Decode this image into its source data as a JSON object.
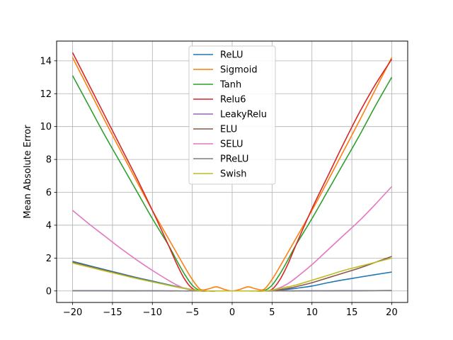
{
  "chart_data": {
    "type": "line",
    "title": "",
    "xlabel": "",
    "ylabel": "Mean Absolute Error",
    "xlim": [
      -22,
      22
    ],
    "ylim": [
      -0.7,
      15.2
    ],
    "xticks": [
      -20,
      -15,
      -10,
      -5,
      0,
      5,
      10,
      15,
      20
    ],
    "xtick_labels": [
      "−20",
      "−15",
      "−10",
      "−5",
      "0",
      "5",
      "10",
      "15",
      "20"
    ],
    "yticks": [
      0,
      2,
      4,
      6,
      8,
      10,
      12,
      14
    ],
    "ytick_labels": [
      "0",
      "2",
      "4",
      "6",
      "8",
      "10",
      "12",
      "14"
    ],
    "grid": true,
    "legend_position": "top-center",
    "x": [
      -20,
      -18,
      -16,
      -14,
      -12,
      -10,
      -8,
      -7,
      -6,
      -5,
      -4,
      -3,
      -2,
      -1,
      0,
      1,
      2,
      3,
      4,
      5,
      6,
      7,
      8,
      10,
      12,
      14,
      16,
      18,
      20
    ],
    "series": [
      {
        "name": "ReLU",
        "color": "#1f77b4",
        "values": [
          1.8,
          1.55,
          1.3,
          1.06,
          0.82,
          0.6,
          0.38,
          0.28,
          0.17,
          0.08,
          0.02,
          0,
          0,
          0,
          0,
          0,
          0,
          0,
          0,
          0,
          0.04,
          0.1,
          0.16,
          0.3,
          0.5,
          0.68,
          0.84,
          1.0,
          1.15
        ]
      },
      {
        "name": "Sigmoid",
        "color": "#ff7f0e",
        "values": [
          14.2,
          12.3,
          10.4,
          8.55,
          6.7,
          4.9,
          3.2,
          2.35,
          1.5,
          0.7,
          0.1,
          0.12,
          0.25,
          0.1,
          0.0,
          0.1,
          0.25,
          0.12,
          0.1,
          0.7,
          1.5,
          2.35,
          3.2,
          4.9,
          6.7,
          8.55,
          10.4,
          12.3,
          14.2
        ]
      },
      {
        "name": "Tanh",
        "color": "#2ca02c",
        "values": [
          13.1,
          11.3,
          9.5,
          7.8,
          6.1,
          4.4,
          2.8,
          1.9,
          1.05,
          0.35,
          0.02,
          0,
          0,
          0,
          0,
          0,
          0,
          0,
          0.02,
          0.35,
          1.05,
          1.9,
          2.8,
          4.4,
          6.1,
          7.8,
          9.5,
          11.3,
          13.0
        ]
      },
      {
        "name": "Relu6",
        "color": "#d62728",
        "values": [
          14.5,
          12.6,
          10.7,
          8.8,
          6.9,
          4.9,
          2.8,
          1.7,
          0.75,
          0.15,
          0,
          0,
          0,
          0,
          0,
          0,
          0,
          0,
          0,
          0.1,
          0.7,
          1.65,
          2.8,
          5.0,
          7.0,
          9.0,
          10.9,
          12.6,
          14.1
        ]
      },
      {
        "name": "LeakyRelu",
        "color": "#9467bd",
        "values": [
          0.02,
          0.02,
          0.02,
          0.01,
          0.01,
          0.01,
          0.01,
          0.01,
          0,
          0,
          0,
          0,
          0,
          0,
          0,
          0,
          0,
          0,
          0,
          0,
          0,
          0.01,
          0.01,
          0.01,
          0.01,
          0.02,
          0.02,
          0.02,
          0.03
        ]
      },
      {
        "name": "ELU",
        "color": "#8c564b",
        "values": [
          1.75,
          1.5,
          1.26,
          1.02,
          0.78,
          0.56,
          0.35,
          0.25,
          0.15,
          0.07,
          0.02,
          0,
          0,
          0,
          0,
          0,
          0,
          0,
          0,
          0.02,
          0.08,
          0.16,
          0.26,
          0.5,
          0.8,
          1.1,
          1.4,
          1.75,
          2.1
        ]
      },
      {
        "name": "SELU",
        "color": "#e377c2",
        "values": [
          4.9,
          4.1,
          3.35,
          2.6,
          1.9,
          1.25,
          0.65,
          0.38,
          0.16,
          0.03,
          0,
          0,
          0,
          0,
          0,
          0,
          0,
          0,
          0,
          0.05,
          0.2,
          0.45,
          0.8,
          1.6,
          2.5,
          3.4,
          4.3,
          5.3,
          6.35
        ]
      },
      {
        "name": "PReLU",
        "color": "#7f7f7f",
        "values": [
          0.01,
          0.01,
          0.01,
          0.01,
          0.01,
          0.01,
          0,
          0,
          0,
          0,
          0,
          0,
          0,
          0,
          0,
          0,
          0,
          0,
          0,
          0,
          0,
          0,
          0,
          0.01,
          0.01,
          0.01,
          0.01,
          0.02,
          0.02
        ]
      },
      {
        "name": "Swish",
        "color": "#bcbd22",
        "values": [
          1.7,
          1.46,
          1.22,
          0.99,
          0.76,
          0.55,
          0.35,
          0.25,
          0.16,
          0.08,
          0.02,
          0,
          0,
          0,
          0,
          0,
          0,
          0,
          0,
          0.05,
          0.15,
          0.25,
          0.36,
          0.65,
          0.95,
          1.25,
          1.5,
          1.75,
          2.0
        ]
      }
    ]
  }
}
